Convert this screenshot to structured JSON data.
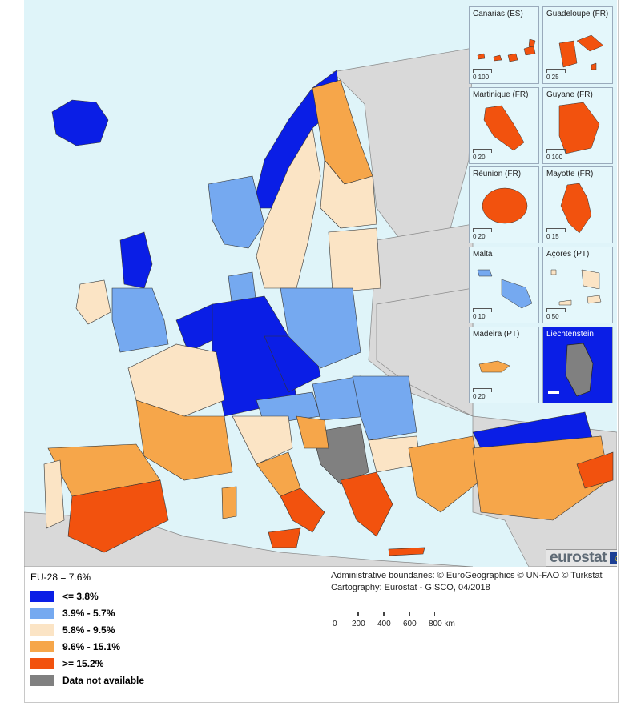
{
  "legend": {
    "eu_average": "EU-28 = 7.6%",
    "classes": [
      {
        "label": "<= 3.8%",
        "color": "#0a1ee6"
      },
      {
        "label": "3.9% - 5.7%",
        "color": "#75a9f0"
      },
      {
        "label": "5.8% - 9.5%",
        "color": "#fbe4c5"
      },
      {
        "label": "9.6% - 15.1%",
        "color": "#f6a64a"
      },
      {
        "label": ">= 15.2%",
        "color": "#f2520e"
      },
      {
        "label": "Data not available",
        "color": "#808080"
      }
    ]
  },
  "credits": {
    "boundaries": "Administrative boundaries: © EuroGeographics © UN-FAO © Turkstat",
    "cartography": "Cartography: Eurostat - GISCO, 04/2018"
  },
  "scale": {
    "ticks": [
      "0",
      "200",
      "400",
      "600",
      "800 km"
    ]
  },
  "logo": {
    "text": "eurostat"
  },
  "insets": [
    {
      "title": "Canarias (ES)",
      "scale": "0   100",
      "fill": "#f2520e"
    },
    {
      "title": "Guadeloupe (FR)",
      "scale": "0   25",
      "fill": "#f2520e"
    },
    {
      "title": "Martinique (FR)",
      "scale": "0   20",
      "fill": "#f2520e"
    },
    {
      "title": "Guyane (FR)",
      "scale": "0   100",
      "fill": "#f2520e"
    },
    {
      "title": "Réunion (FR)",
      "scale": "0   20",
      "fill": "#f2520e"
    },
    {
      "title": "Mayotte (FR)",
      "scale": "0   15",
      "fill": "#f2520e"
    },
    {
      "title": "Malta",
      "scale": "0   10",
      "fill": "#75a9f0"
    },
    {
      "title": "Açores (PT)",
      "scale": "0   50",
      "fill": "#fbe4c5"
    },
    {
      "title": "Madeira (PT)",
      "scale": "0   20",
      "fill": "#f6a64a"
    },
    {
      "title": "Liechtenstein",
      "scale": "",
      "fill": "#808080"
    }
  ],
  "colors": {
    "sea": "#dff4f9",
    "non_eu_land": "#d9d9d9",
    "inset_dark": "#0a1ee6"
  }
}
